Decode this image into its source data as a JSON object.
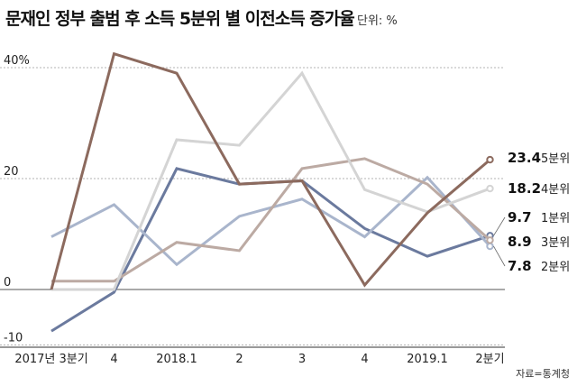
{
  "title": "문재인 정부 출범 후 소득 5분위 별 이전소득 증가율",
  "unit": "단위: %",
  "source": "자료=통계청",
  "chart_data": {
    "type": "line",
    "title": "문재인 정부 출범 후 소득 5분위 별 이전소득 증가율",
    "unit": "단위: %",
    "categories": [
      "2017년 3분기",
      "4",
      "2018.1",
      "2",
      "3",
      "4",
      "2019.1",
      "2분기"
    ],
    "ylim": [
      -10,
      40
    ],
    "yticks": [
      {
        "value": 40,
        "label": "40%"
      },
      {
        "value": 20,
        "label": "20"
      },
      {
        "value": 0,
        "label": "0"
      },
      {
        "value": -10,
        "label": "-10"
      }
    ],
    "grid": true,
    "series": [
      {
        "name": "1분위",
        "color": "#6b7a9e",
        "width": 3,
        "values": [
          -7.5,
          -0.5,
          21.8,
          19.0,
          19.6,
          11.0,
          6.0,
          9.7
        ],
        "end_label": "9.7"
      },
      {
        "name": "2분위",
        "color": "#a9b5cc",
        "width": 3,
        "values": [
          9.5,
          15.3,
          4.5,
          13.2,
          16.3,
          9.5,
          20.2,
          7.8
        ],
        "end_label": "7.8"
      },
      {
        "name": "3분위",
        "color": "#bcaaa3",
        "width": 3,
        "values": [
          1.5,
          1.5,
          8.5,
          7.0,
          21.8,
          23.6,
          19.0,
          8.9
        ],
        "end_label": "8.9"
      },
      {
        "name": "4분위",
        "color": "#d4d4d4",
        "width": 3,
        "values": [
          0.0,
          0.0,
          27.0,
          26.0,
          39.0,
          18.0,
          14.0,
          18.2
        ],
        "end_label": "18.2"
      },
      {
        "name": "5분위",
        "color": "#8c6a5e",
        "width": 3,
        "values": [
          0.0,
          42.5,
          39.0,
          19.0,
          19.6,
          0.8,
          13.8,
          23.4
        ],
        "end_label": "23.4"
      }
    ]
  }
}
